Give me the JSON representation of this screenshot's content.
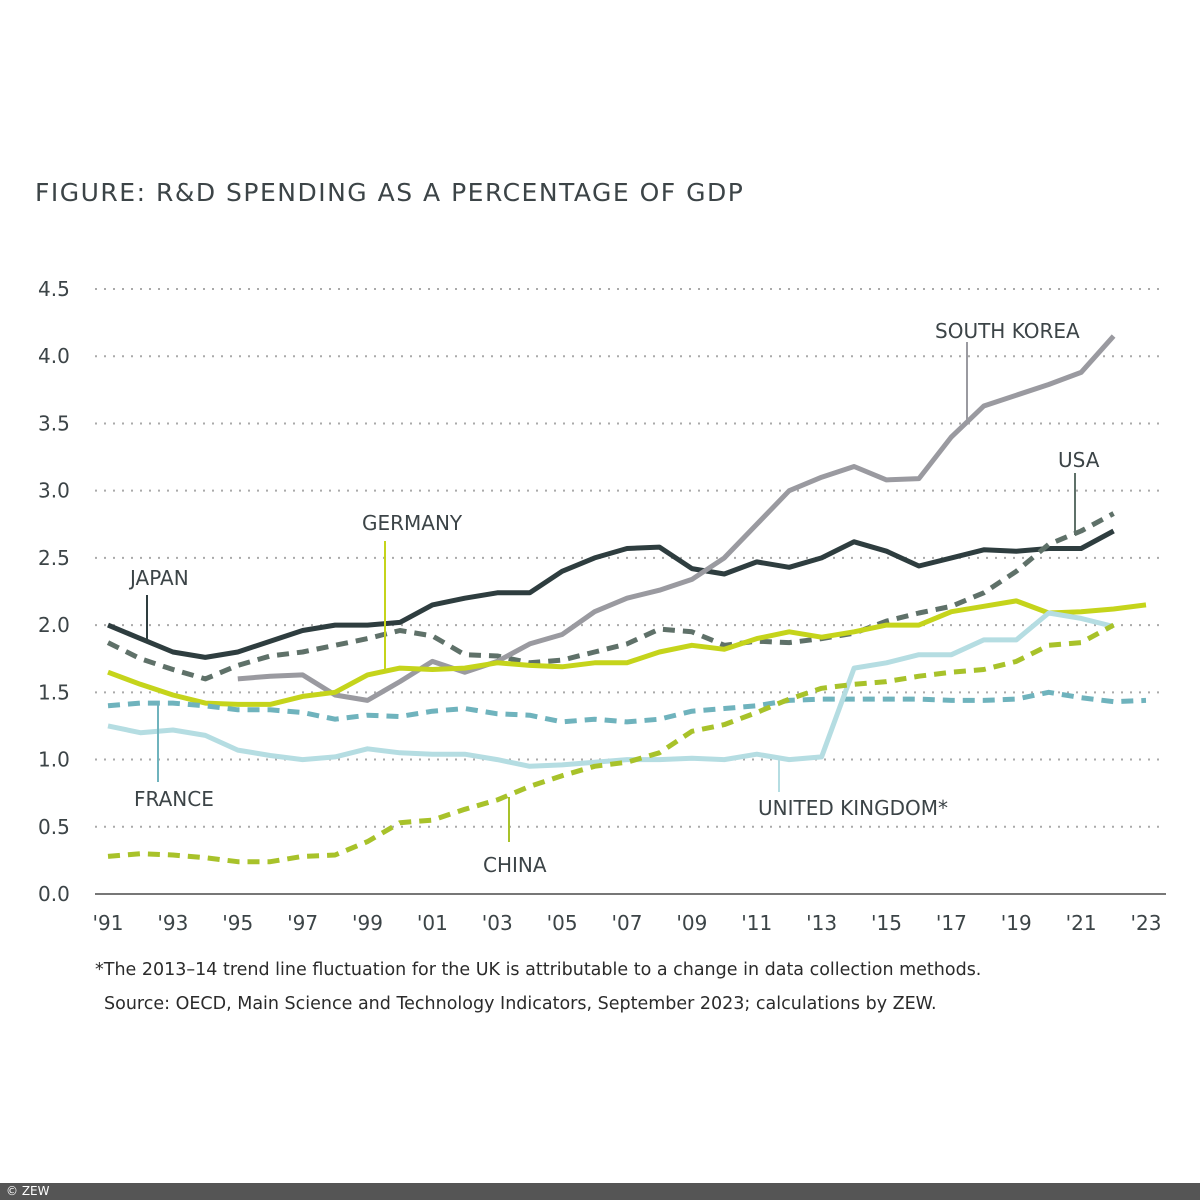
{
  "chart_data": {
    "type": "line",
    "title": "FIGURE: R&D SPENDING AS A PERCENTAGE OF GDP",
    "xlabel": "",
    "ylabel": "",
    "ylim": [
      0,
      4.5
    ],
    "xlim": [
      1991,
      2023
    ],
    "y_ticks": [
      "0.0",
      "0.5",
      "1.0",
      "1.5",
      "2.0",
      "2.5",
      "3.0",
      "3.5",
      "4.0",
      "4.5"
    ],
    "x_ticks": [
      "'91",
      "'93",
      "'95",
      "'97",
      "'99",
      "'01",
      "'03",
      "'05",
      "'07",
      "'09",
      "'11",
      "'13",
      "'15",
      "'17",
      "'19",
      "'21",
      "'23"
    ],
    "grid": "horizontal dotted",
    "series": [
      {
        "name": "JAPAN",
        "color": "#2e3d3f",
        "style": "solid",
        "start": 1991,
        "values": [
          2.0,
          1.9,
          1.8,
          1.76,
          1.8,
          1.88,
          1.96,
          2.0,
          2.0,
          2.02,
          2.15,
          2.2,
          2.24,
          2.24,
          2.4,
          2.5,
          2.57,
          2.58,
          2.42,
          2.38,
          2.47,
          2.43,
          2.5,
          2.62,
          2.55,
          2.44,
          2.5,
          2.56,
          2.55,
          2.57,
          2.57,
          2.7
        ]
      },
      {
        "name": "USA",
        "color": "#5f7169",
        "style": "dashed",
        "start": 1991,
        "values": [
          1.87,
          1.75,
          1.67,
          1.6,
          1.7,
          1.77,
          1.8,
          1.85,
          1.9,
          1.96,
          1.92,
          1.78,
          1.77,
          1.72,
          1.74,
          1.8,
          1.86,
          1.97,
          1.95,
          1.85,
          1.88,
          1.87,
          1.9,
          1.94,
          2.03,
          2.09,
          2.14,
          2.24,
          2.4,
          2.6,
          2.7,
          2.83
        ]
      },
      {
        "name": "SOUTH KOREA",
        "color": "#9a9aa0",
        "style": "solid",
        "start": 1995,
        "values": [
          1.6,
          1.62,
          1.63,
          1.48,
          1.44,
          1.58,
          1.73,
          1.65,
          1.73,
          1.86,
          1.93,
          2.1,
          2.2,
          2.26,
          2.34,
          2.5,
          2.75,
          3.0,
          3.1,
          3.18,
          3.08,
          3.09,
          3.4,
          3.63,
          3.71,
          3.79,
          3.88,
          4.15
        ]
      },
      {
        "name": "GERMANY",
        "color": "#c5d41b",
        "style": "solid",
        "start": 1991,
        "values": [
          1.65,
          1.56,
          1.48,
          1.42,
          1.41,
          1.41,
          1.47,
          1.5,
          1.63,
          1.68,
          1.67,
          1.68,
          1.72,
          1.7,
          1.69,
          1.72,
          1.72,
          1.8,
          1.85,
          1.82,
          1.9,
          1.95,
          1.91,
          1.95,
          2.0,
          2.0,
          2.1,
          2.14,
          2.18,
          2.09,
          2.1,
          2.12,
          2.15
        ]
      },
      {
        "name": "FRANCE",
        "color": "#6fb3bd",
        "style": "dashed",
        "start": 1991,
        "values": [
          1.4,
          1.42,
          1.42,
          1.4,
          1.37,
          1.37,
          1.35,
          1.3,
          1.33,
          1.32,
          1.36,
          1.38,
          1.34,
          1.33,
          1.28,
          1.3,
          1.28,
          1.3,
          1.36,
          1.38,
          1.4,
          1.44,
          1.45,
          1.45,
          1.45,
          1.45,
          1.44,
          1.44,
          1.45,
          1.5,
          1.46,
          1.43,
          1.44
        ]
      },
      {
        "name": "UNITED KINGDOM*",
        "color": "#b5dde2",
        "style": "solid",
        "start": 1991,
        "values": [
          1.25,
          1.2,
          1.22,
          1.18,
          1.07,
          1.03,
          1.0,
          1.02,
          1.08,
          1.05,
          1.04,
          1.04,
          1.0,
          0.95,
          0.96,
          0.98,
          1.0,
          1.0,
          1.01,
          1.0,
          1.04,
          1.0,
          1.02,
          1.68,
          1.72,
          1.78,
          1.78,
          1.89,
          1.89,
          2.09,
          2.05,
          1.99
        ]
      },
      {
        "name": "CHINA",
        "color": "#a8c22a",
        "style": "dashed",
        "start": 1991,
        "values": [
          0.28,
          0.3,
          0.29,
          0.27,
          0.24,
          0.24,
          0.28,
          0.29,
          0.39,
          0.53,
          0.55,
          0.63,
          0.7,
          0.8,
          0.88,
          0.95,
          0.98,
          1.05,
          1.21,
          1.26,
          1.35,
          1.45,
          1.53,
          1.56,
          1.58,
          1.62,
          1.65,
          1.67,
          1.73,
          1.85,
          1.87,
          2.0
        ]
      }
    ],
    "footnote": "*The 2013–14 trend line fluctuation for the UK is attributable to a change in data collection methods.",
    "source": "Source: OECD, Main Science and Technology Indicators, September 2023; calculations by ZEW."
  },
  "footer": {
    "credit": "© ZEW"
  }
}
